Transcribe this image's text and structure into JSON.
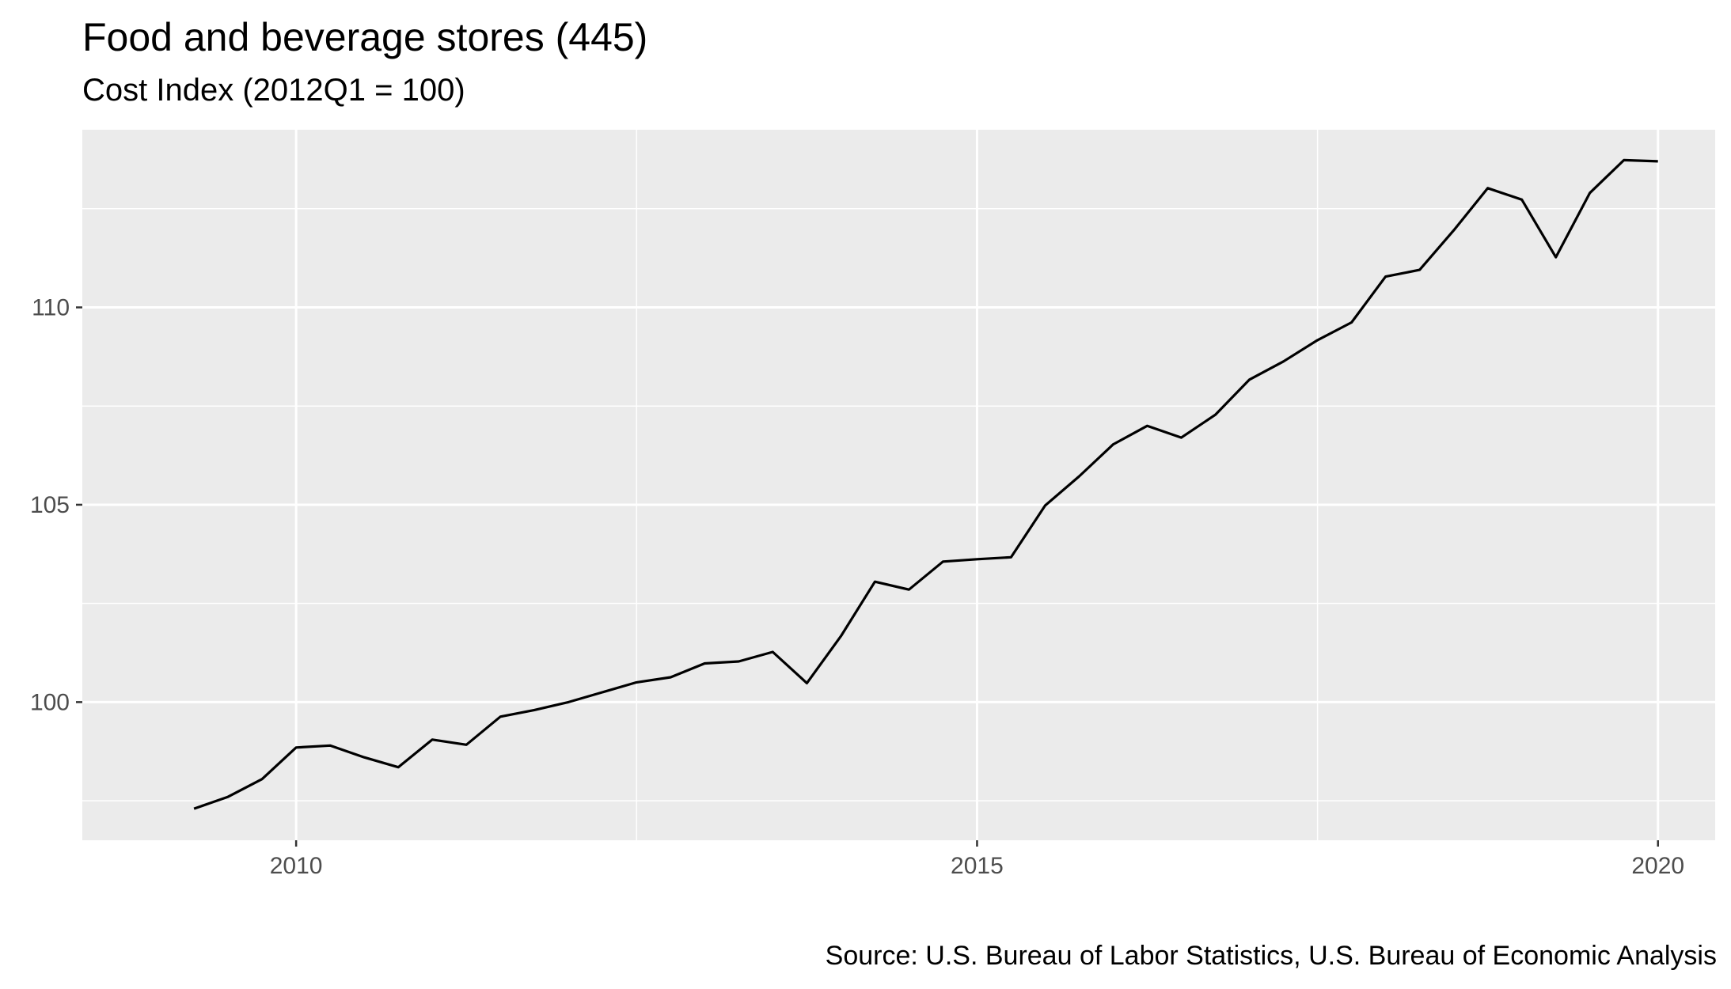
{
  "chart_data": {
    "type": "line",
    "title": "Food and beverage stores (445)",
    "subtitle": "Cost Index (2012Q1 = 100)",
    "caption": "Source: U.S. Bureau of Labor Statistics, U.S. Bureau of Economic Analysis",
    "xlabel": "",
    "ylabel": "",
    "xlim": [
      2008.43,
      2020.42
    ],
    "ylim": [
      96.5,
      114.5
    ],
    "x_ticks": [
      2010,
      2015,
      2020
    ],
    "y_ticks": [
      100,
      105,
      110
    ],
    "grid": true,
    "legend": "none",
    "colors": {
      "panel": "#ebebeb",
      "grid": "#ffffff",
      "line": "#000000",
      "tick_text": "#4d4d4d",
      "tick_mark": "#333333"
    },
    "x": [
      2009.25,
      2009.5,
      2009.75,
      2010.0,
      2010.25,
      2010.5,
      2010.75,
      2011.0,
      2011.25,
      2011.5,
      2011.75,
      2012.0,
      2012.25,
      2012.5,
      2012.75,
      2013.0,
      2013.25,
      2013.5,
      2013.75,
      2014.0,
      2014.25,
      2014.5,
      2014.75,
      2015.0,
      2015.25,
      2015.5,
      2015.75,
      2016.0,
      2016.25,
      2016.5,
      2016.75,
      2017.0,
      2017.25,
      2017.5,
      2017.75,
      2018.0,
      2018.25,
      2018.5,
      2018.75,
      2019.0,
      2019.25,
      2019.5,
      2019.75,
      2020.0
    ],
    "y": [
      97.3,
      97.6,
      98.05,
      98.85,
      98.9,
      98.6,
      98.35,
      99.05,
      98.92,
      99.63,
      99.8,
      100.0,
      100.25,
      100.5,
      100.63,
      100.98,
      101.03,
      101.27,
      100.48,
      101.67,
      103.05,
      102.85,
      103.56,
      103.62,
      103.67,
      104.98,
      105.72,
      106.53,
      107.0,
      106.7,
      107.28,
      108.17,
      108.63,
      109.17,
      109.62,
      110.78,
      110.95,
      111.95,
      113.02,
      112.73,
      111.27,
      112.9,
      113.73,
      113.7
    ]
  }
}
